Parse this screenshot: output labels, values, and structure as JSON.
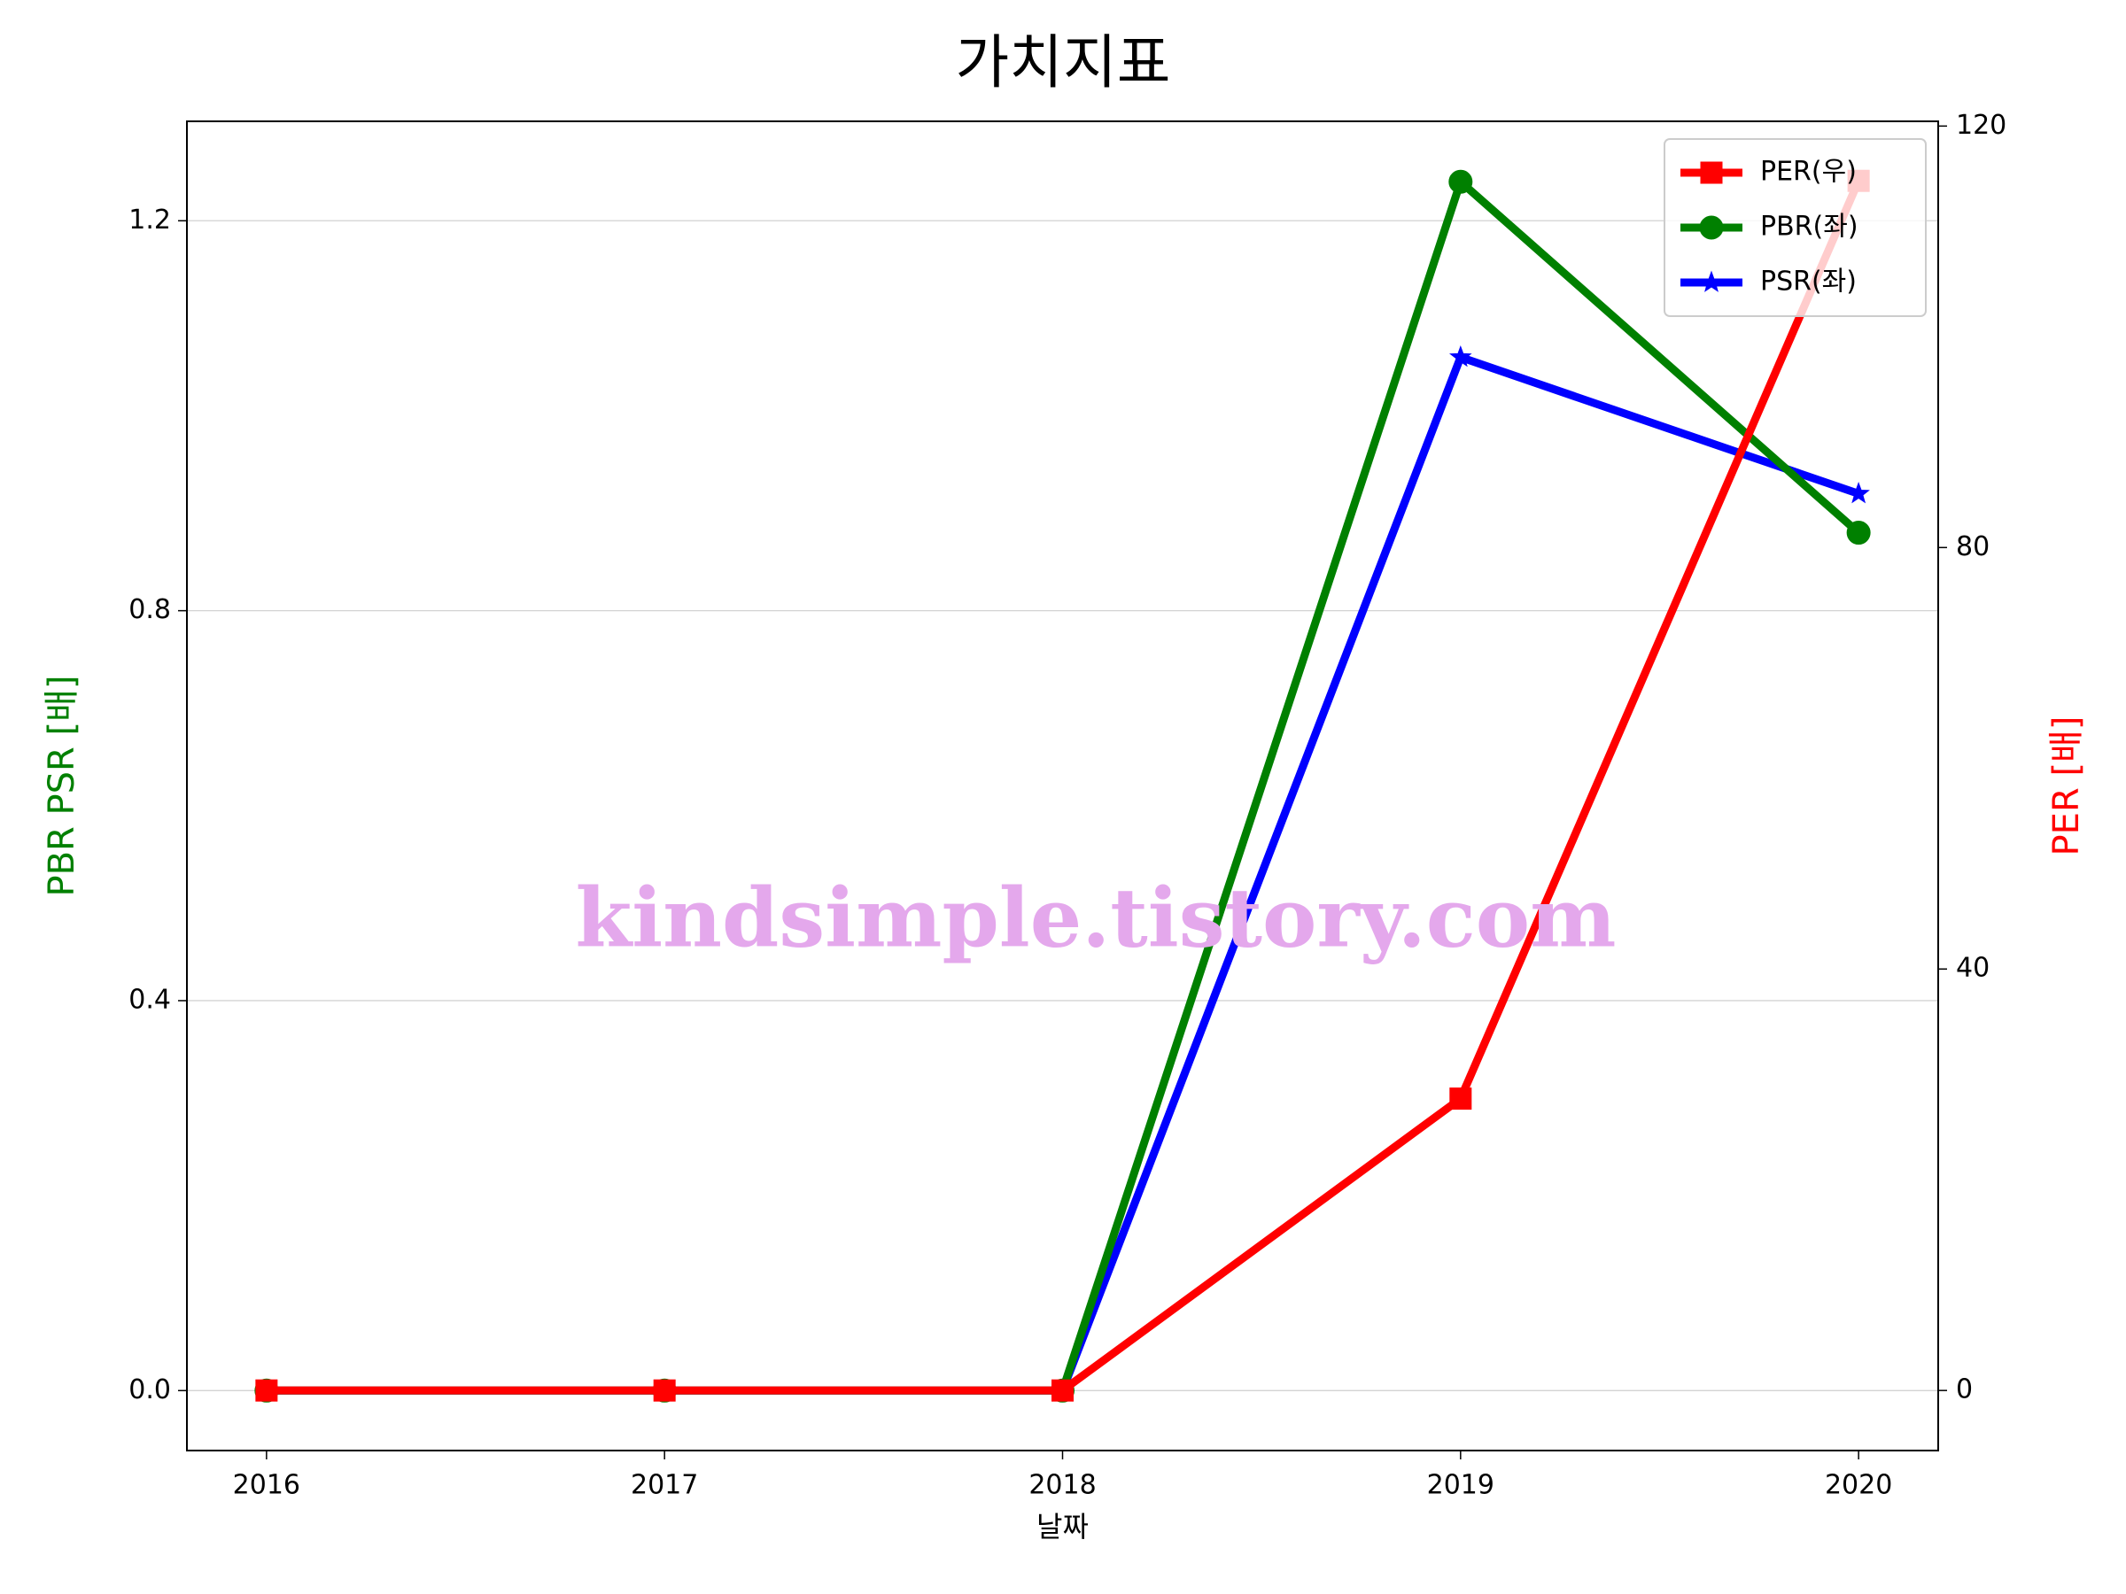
{
  "chart_data": {
    "type": "line",
    "title": "가치지표",
    "x": [
      2016,
      2017,
      2018,
      2019,
      2020
    ],
    "xlabel": "날짜",
    "ylabel": "PBR PSR [배]",
    "ylabel_color": "green",
    "y2label": "PER [배]",
    "y2label_color": "red",
    "series": [
      {
        "name": "PER(우)",
        "color": "#ff0000",
        "marker": "square",
        "axis": "y2",
        "values": [
          0,
          0,
          0,
          27.7,
          114.8
        ]
      },
      {
        "name": "PBR(좌)",
        "color": "#008000",
        "marker": "circle",
        "values": [
          0,
          0,
          0,
          1.24,
          0.88
        ]
      },
      {
        "name": "PSR(좌)",
        "color": "#0000ff",
        "marker": "star",
        "values": [
          0,
          0,
          0,
          1.06,
          0.92
        ]
      }
    ],
    "xlim": [
      2015.8,
      2020.2
    ],
    "xticks": [
      2016,
      2017,
      2018,
      2019,
      2020
    ],
    "ylim": [
      -0.0615,
      1.302
    ],
    "yticks": [
      {
        "value": 0,
        "label": "0.0"
      },
      0.4,
      0.8,
      1.2
    ],
    "y2lim": [
      -5.7,
      120.45
    ],
    "y2ticks": [
      0,
      40,
      80,
      120
    ],
    "grid": true,
    "legend": "upper right",
    "annotation": "kindsimple.tistory.com",
    "annotation_color": "#e4a8ec"
  }
}
